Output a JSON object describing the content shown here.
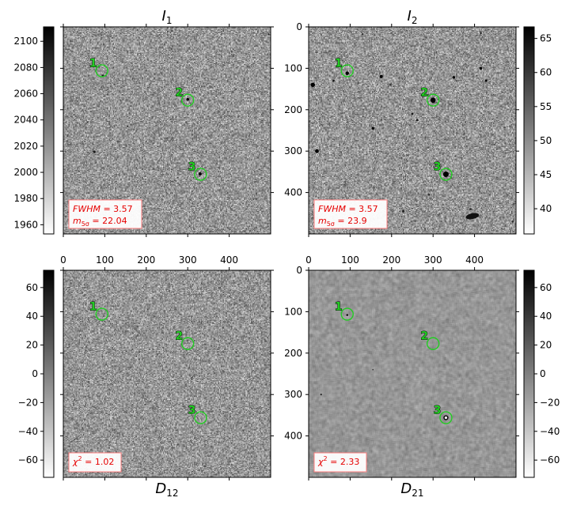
{
  "chart_data": [
    {
      "type": "heatmap",
      "title": "I",
      "title_sub": "1",
      "colorbar": {
        "side": "left",
        "range": [
          1953,
          2111
        ],
        "ticks": [
          1960,
          1980,
          2000,
          2020,
          2040,
          2060,
          2080,
          2100
        ]
      },
      "xticks": [],
      "yticks": [],
      "info": [
        {
          "prefix": "",
          "var": "FWHM",
          "sub": "",
          "value": " = 3.57"
        },
        {
          "prefix": "",
          "var": "m",
          "sub": "5σ",
          "value": " = 22.04"
        }
      ],
      "noise": {
        "base": 150,
        "amp": 60,
        "seed": 11
      },
      "stars": [
        {
          "x": 300,
          "y": 175,
          "r": 2.6,
          "dark": 1.0
        },
        {
          "x": 330,
          "y": 355,
          "r": 3.0,
          "dark": 1.0
        },
        {
          "x": 95,
          "y": 118,
          "r": 2.0,
          "dark": 0.9
        },
        {
          "x": 75,
          "y": 302,
          "r": 2.0,
          "dark": 0.9
        },
        {
          "x": 155,
          "y": 240,
          "r": 1.4,
          "dark": 0.8
        },
        {
          "x": 445,
          "y": 95,
          "r": 1.4,
          "dark": 0.7
        },
        {
          "x": 495,
          "y": 18,
          "r": 1.6,
          "dark": 0.8
        },
        {
          "x": 410,
          "y": 450,
          "r": 3.0,
          "dark": 0.3
        }
      ],
      "sources": [
        {
          "label": "1",
          "x": 93,
          "y": 106
        },
        {
          "label": "2",
          "x": 300,
          "y": 177
        },
        {
          "label": "3",
          "x": 331,
          "y": 356
        }
      ]
    },
    {
      "type": "heatmap",
      "title": "I",
      "title_sub": "2",
      "colorbar": {
        "side": "right",
        "range": [
          36.3,
          66.7
        ],
        "ticks": [
          40,
          45,
          50,
          55,
          60,
          65
        ]
      },
      "xticks": [],
      "yticks": [
        0,
        100,
        200,
        300,
        400
      ],
      "info": [
        {
          "prefix": "",
          "var": "FWHM",
          "sub": "",
          "value": " = 3.57"
        },
        {
          "prefix": "",
          "var": "m",
          "sub": "5σ",
          "value": " = 23.9"
        }
      ],
      "noise": {
        "base": 150,
        "amp": 60,
        "seed": 23
      },
      "stars": [
        {
          "x": 300,
          "y": 177,
          "r": 5.5,
          "dark": 1.0
        },
        {
          "x": 331,
          "y": 356,
          "r": 6.0,
          "dark": 1.0
        },
        {
          "x": 93,
          "y": 112,
          "r": 3.5,
          "dark": 1.0
        },
        {
          "x": 10,
          "y": 140,
          "r": 4.5,
          "dark": 1.0
        },
        {
          "x": 175,
          "y": 120,
          "r": 3.0,
          "dark": 1.0
        },
        {
          "x": 350,
          "y": 122,
          "r": 2.5,
          "dark": 1.0
        },
        {
          "x": 415,
          "y": 100,
          "r": 2.5,
          "dark": 1.0
        },
        {
          "x": 428,
          "y": 130,
          "r": 2.0,
          "dark": 1.0
        },
        {
          "x": 20,
          "y": 300,
          "r": 3.8,
          "dark": 1.0
        },
        {
          "x": 155,
          "y": 245,
          "r": 2.5,
          "dark": 1.0
        },
        {
          "x": 250,
          "y": 210,
          "r": 2.0,
          "dark": 0.9
        },
        {
          "x": 262,
          "y": 225,
          "r": 2.0,
          "dark": 0.9
        },
        {
          "x": 228,
          "y": 445,
          "r": 2.0,
          "dark": 0.9
        },
        {
          "x": 60,
          "y": 130,
          "r": 2.0,
          "dark": 0.9
        },
        {
          "x": 130,
          "y": 18,
          "r": 1.6,
          "dark": 0.8
        },
        {
          "x": 415,
          "y": 15,
          "r": 1.8,
          "dark": 0.8
        },
        {
          "x": 390,
          "y": 440,
          "r": 2.0,
          "dark": 0.8
        },
        {
          "x": 492,
          "y": 470,
          "r": 1.8,
          "dark": 0.8
        },
        {
          "x": 290,
          "y": 405,
          "r": 2.0,
          "dark": 0.8
        },
        {
          "x": 197,
          "y": 140,
          "r": 1.6,
          "dark": 0.8
        }
      ],
      "galaxy": {
        "x": 395,
        "y": 457,
        "rx": 16,
        "ry": 7
      },
      "sources": [
        {
          "label": "1",
          "x": 93,
          "y": 106
        },
        {
          "label": "2",
          "x": 300,
          "y": 177
        },
        {
          "label": "3",
          "x": 331,
          "y": 356
        }
      ]
    },
    {
      "type": "heatmap",
      "title": "",
      "xlabel": "D",
      "xlabel_sub": "12",
      "colorbar": {
        "side": "left",
        "range": [
          -72,
          72
        ],
        "ticks": [
          -60,
          -40,
          -20,
          0,
          20,
          40,
          60
        ]
      },
      "xticks": [
        0,
        100,
        200,
        300,
        400
      ],
      "yticks": [],
      "info": [
        {
          "prefix": "",
          "var": "χ",
          "sup": "2",
          "value": " = 1.02"
        }
      ],
      "noise": {
        "base": 150,
        "amp": 58,
        "seed": 37
      },
      "stars": [],
      "sources": [
        {
          "label": "1",
          "x": 93,
          "y": 106
        },
        {
          "label": "2",
          "x": 300,
          "y": 177
        },
        {
          "label": "3",
          "x": 331,
          "y": 356
        }
      ]
    },
    {
      "type": "heatmap",
      "title": "",
      "xlabel": "D",
      "xlabel_sub": "21",
      "colorbar": {
        "side": "right",
        "range": [
          -72,
          72
        ],
        "ticks": [
          -60,
          -40,
          -20,
          0,
          20,
          40,
          60
        ]
      },
      "xticks": [
        0,
        100,
        200,
        300,
        400
      ],
      "yticks": [
        0,
        100,
        200,
        300,
        400
      ],
      "info": [
        {
          "prefix": "",
          "var": "χ",
          "sup": "2",
          "value": " = 2.33"
        }
      ],
      "noise": {
        "base": 150,
        "amp": 22,
        "seed": 51,
        "smooth": true
      },
      "stars": [
        {
          "x": 93,
          "y": 108,
          "r": 1.6,
          "dark": 1.0
        },
        {
          "x": 30,
          "y": 300,
          "r": 1.2,
          "dark": 0.9
        },
        {
          "x": 155,
          "y": 240,
          "r": 0.9,
          "dark": 0.8
        }
      ],
      "residual": {
        "x": 331,
        "y": 356
      },
      "sources": [
        {
          "label": "1",
          "x": 93,
          "y": 106
        },
        {
          "label": "2",
          "x": 300,
          "y": 177
        },
        {
          "label": "3",
          "x": 331,
          "y": 356
        }
      ]
    }
  ]
}
